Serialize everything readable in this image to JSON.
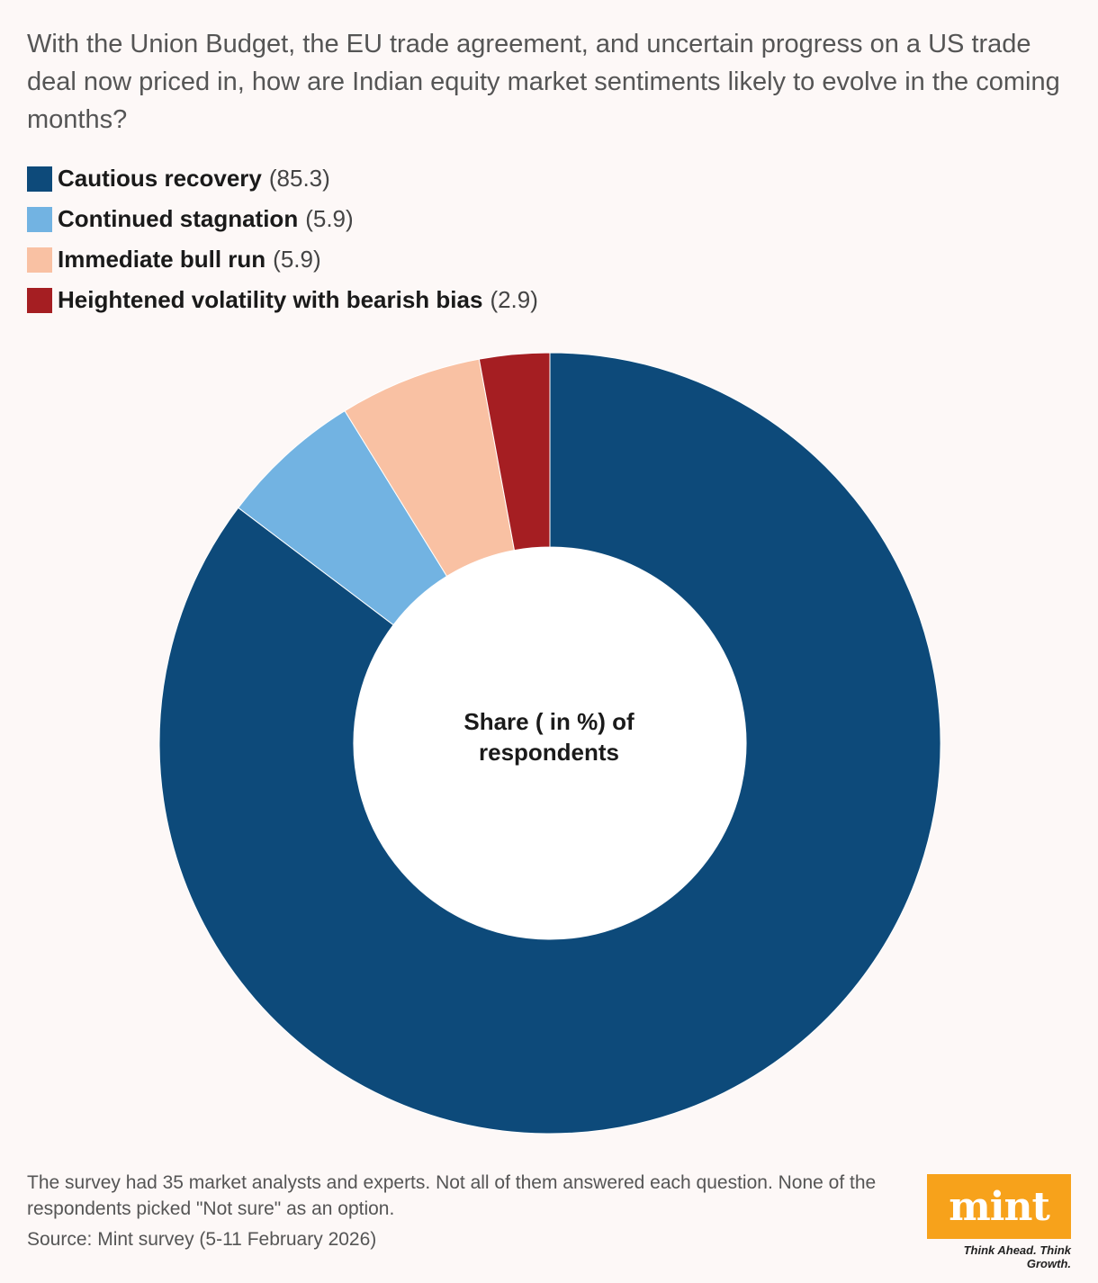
{
  "question": "With the Union Budget, the EU trade agreement, and uncertain progress on a US trade deal now priced in, how are Indian equity market sentiments likely to evolve in the coming months?",
  "center_label": "Share ( in %) of respondents",
  "legend": [
    {
      "label": "Cautious recovery",
      "value": "(85.3)",
      "color": "#0d4a7a"
    },
    {
      "label": "Continued stagnation",
      "value": "(5.9)",
      "color": "#72b3e2"
    },
    {
      "label": "Immediate bull run",
      "value": "(5.9)",
      "color": "#f9c1a3"
    },
    {
      "label": "Heightened volatility with bearish bias",
      "value": "(2.9)",
      "color": "#a51e22"
    }
  ],
  "chart_data": {
    "type": "pie",
    "title": "Share ( in %) of respondents",
    "categories": [
      "Cautious recovery",
      "Continued stagnation",
      "Immediate bull run",
      "Heightened volatility with bearish bias"
    ],
    "values": [
      85.3,
      5.9,
      5.9,
      2.9
    ],
    "colors": [
      "#0d4a7a",
      "#72b3e2",
      "#f9c1a3",
      "#a51e22"
    ],
    "donut": true,
    "legend_position": "top-left"
  },
  "footnote": "The survey had 35 market analysts and experts. Not all of them answered each question. None of the respondents picked \"Not sure\" as an option.",
  "source": "Source: Mint survey (5-11 February 2026)",
  "logo": {
    "name": "mint",
    "tagline": "Think Ahead. Think Growth.",
    "color": "#f7a21b"
  }
}
